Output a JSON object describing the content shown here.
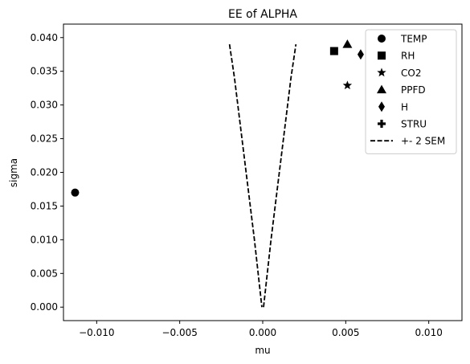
{
  "chart_data": {
    "type": "scatter",
    "title": "EE of ALPHA",
    "xlabel": "mu",
    "ylabel": "sigma",
    "xlim": [
      -0.012,
      0.012
    ],
    "ylim": [
      -0.002,
      0.042
    ],
    "xticks": [
      -0.01,
      -0.005,
      0.0,
      0.005,
      0.01
    ],
    "xtick_labels": [
      "−0.010",
      "−0.005",
      "0.000",
      "0.005",
      "0.010"
    ],
    "yticks": [
      0.0,
      0.005,
      0.01,
      0.015,
      0.02,
      0.025,
      0.03,
      0.035,
      0.04
    ],
    "ytick_labels": [
      "0.000",
      "0.005",
      "0.010",
      "0.015",
      "0.020",
      "0.025",
      "0.030",
      "0.035",
      "0.040"
    ],
    "grid": false,
    "legend_position": "top-right",
    "points": [
      {
        "name": "TEMP",
        "marker": "circle",
        "x": -0.0113,
        "y": 0.017
      },
      {
        "name": "RH",
        "marker": "square",
        "x": 0.0043,
        "y": 0.038
      },
      {
        "name": "CO2",
        "marker": "star",
        "x": 0.0051,
        "y": 0.0329
      },
      {
        "name": "PPFD",
        "marker": "triangle",
        "x": 0.0051,
        "y": 0.039
      },
      {
        "name": "H",
        "marker": "diamond",
        "x": 0.0059,
        "y": 0.0375
      },
      {
        "name": "STRU",
        "marker": "plus",
        "x": null,
        "y": null
      }
    ],
    "sem_line": {
      "name": "+- 2 SEM",
      "style": "dashed",
      "left": [
        [
          -0.002,
          0.039
        ],
        [
          -0.0017,
          0.034
        ],
        [
          -0.0011,
          0.022
        ],
        [
          -0.0005,
          0.01
        ],
        [
          -5e-05,
          0.0
        ]
      ],
      "right": [
        [
          5e-05,
          0.0
        ],
        [
          0.0005,
          0.01
        ],
        [
          0.0011,
          0.022
        ],
        [
          0.0017,
          0.034
        ],
        [
          0.002,
          0.039
        ]
      ]
    }
  },
  "colors": {
    "marker": "#000000",
    "axes": "#000000",
    "legend_border": "#cccccc",
    "background": "#ffffff"
  }
}
